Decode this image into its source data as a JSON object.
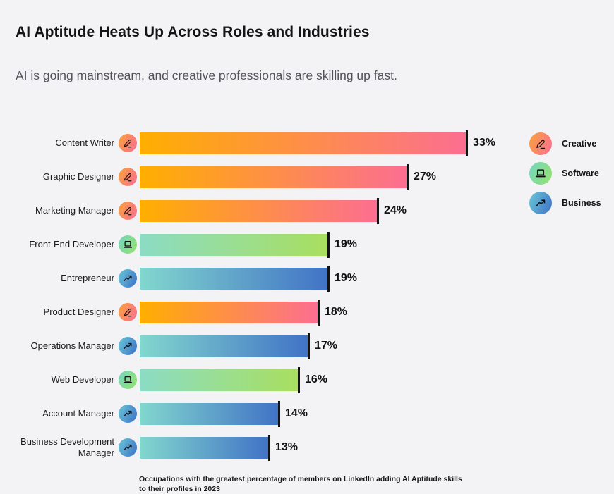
{
  "header": {
    "title": "AI Aptitude Heats Up Across Roles and Industries",
    "subtitle": "AI is going mainstream, and creative professionals are skilling up fast."
  },
  "chart_data": {
    "type": "bar",
    "orientation": "horizontal",
    "title": "AI Aptitude Heats Up Across Roles and Industries",
    "subtitle": "AI is going mainstream, and creative professionals are skilling up fast.",
    "footnote": "Occupations with the greatest percentage of members on LinkedIn adding AI Aptitude skills to their profiles in 2023",
    "unit": "%",
    "xlim": [
      0,
      35
    ],
    "grid": false,
    "legend_position": "right",
    "categories": [
      "Content Writer",
      "Graphic Designer",
      "Marketing Manager",
      "Front-End Developer",
      "Entrepreneur",
      "Product Designer",
      "Operations Manager",
      "Web Developer",
      "Account Manager",
      "Business Development Manager"
    ],
    "values": [
      33,
      27,
      24,
      19,
      19,
      18,
      17,
      16,
      14,
      13
    ],
    "rows": [
      {
        "label": "Content Writer",
        "group": "creative",
        "value": 33,
        "display": "33%"
      },
      {
        "label": "Graphic Designer",
        "group": "creative",
        "value": 27,
        "display": "27%"
      },
      {
        "label": "Marketing Manager",
        "group": "creative",
        "value": 24,
        "display": "24%"
      },
      {
        "label": "Front-End Developer",
        "group": "software",
        "value": 19,
        "display": "19%"
      },
      {
        "label": "Entrepreneur",
        "group": "business",
        "value": 19,
        "display": "19%"
      },
      {
        "label": "Product Designer",
        "group": "creative",
        "value": 18,
        "display": "18%"
      },
      {
        "label": "Operations Manager",
        "group": "business",
        "value": 17,
        "display": "17%"
      },
      {
        "label": "Web Developer",
        "group": "software",
        "value": 16,
        "display": "16%"
      },
      {
        "label": "Account Manager",
        "group": "business",
        "value": 14,
        "display": "14%"
      },
      {
        "label": "Business Development Manager",
        "group": "business",
        "value": 13,
        "display": "13%"
      }
    ],
    "groups": {
      "creative": {
        "label": "Creative",
        "icon": "pen-icon",
        "bar_gradient": [
          "#FFAF00",
          "#FC6E91"
        ],
        "icon_gradient": [
          "#F9A23A",
          "#FB6D97"
        ]
      },
      "software": {
        "label": "Software",
        "icon": "laptop-icon",
        "bar_gradient": [
          "#8BDCC5",
          "#A9DF5F"
        ],
        "icon_gradient": [
          "#74D5C0",
          "#97E26E"
        ]
      },
      "business": {
        "label": "Business",
        "icon": "trend-up-icon",
        "bar_gradient": [
          "#82D7CE",
          "#4173C6"
        ],
        "icon_gradient": [
          "#69C8D8",
          "#3F70C5"
        ]
      }
    },
    "legend": [
      {
        "group": "creative",
        "label": "Creative"
      },
      {
        "group": "software",
        "label": "Software"
      },
      {
        "group": "business",
        "label": "Business"
      }
    ]
  },
  "style": {
    "background": "#F3F3F5",
    "bar_endcap_color": "#121212",
    "title_color": "#141417",
    "subtitle_color": "#52525B"
  }
}
